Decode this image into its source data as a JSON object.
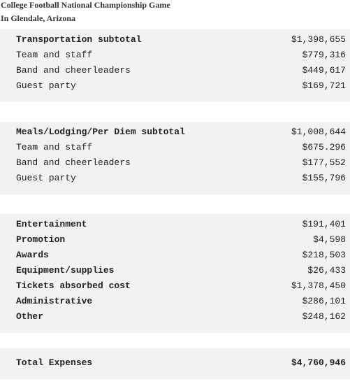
{
  "header": {
    "title": "College Football National Championship Game",
    "subtitle": "In Glendale, Arizona"
  },
  "sections": [
    {
      "rows": [
        {
          "label": "Transportation subtotal",
          "amount": "$1,398,655"
        },
        {
          "label": "Team and staff",
          "amount": "$779,316"
        },
        {
          "label": "Band and cheerleaders",
          "amount": "$449,617"
        },
        {
          "label": "Guest party",
          "amount": "$169,721"
        }
      ]
    },
    {
      "rows": [
        {
          "label": "Meals/Lodging/Per Diem subtotal",
          "amount": "$1,008,644"
        },
        {
          "label": "Team and staff",
          "amount": "$675.296"
        },
        {
          "label": "Band and cheerleaders",
          "amount": "$177,552"
        },
        {
          "label": "Guest party",
          "amount": "$155,796"
        }
      ]
    },
    {
      "rows": [
        {
          "label": "Entertainment",
          "amount": "$191,401"
        },
        {
          "label": "Promotion",
          "amount": "$4,598"
        },
        {
          "label": "Awards",
          "amount": "$218,503"
        },
        {
          "label": "Equipment/supplies",
          "amount": "$26,433"
        },
        {
          "label": "Tickets absorbed cost",
          "amount": "$1,378,450"
        },
        {
          "label": "Administrative",
          "amount": "$286,101"
        },
        {
          "label": "Other",
          "amount": "$248,162"
        }
      ]
    },
    {
      "rows": [
        {
          "label": "Total Expenses",
          "amount": "$4,760,946"
        }
      ]
    }
  ]
}
